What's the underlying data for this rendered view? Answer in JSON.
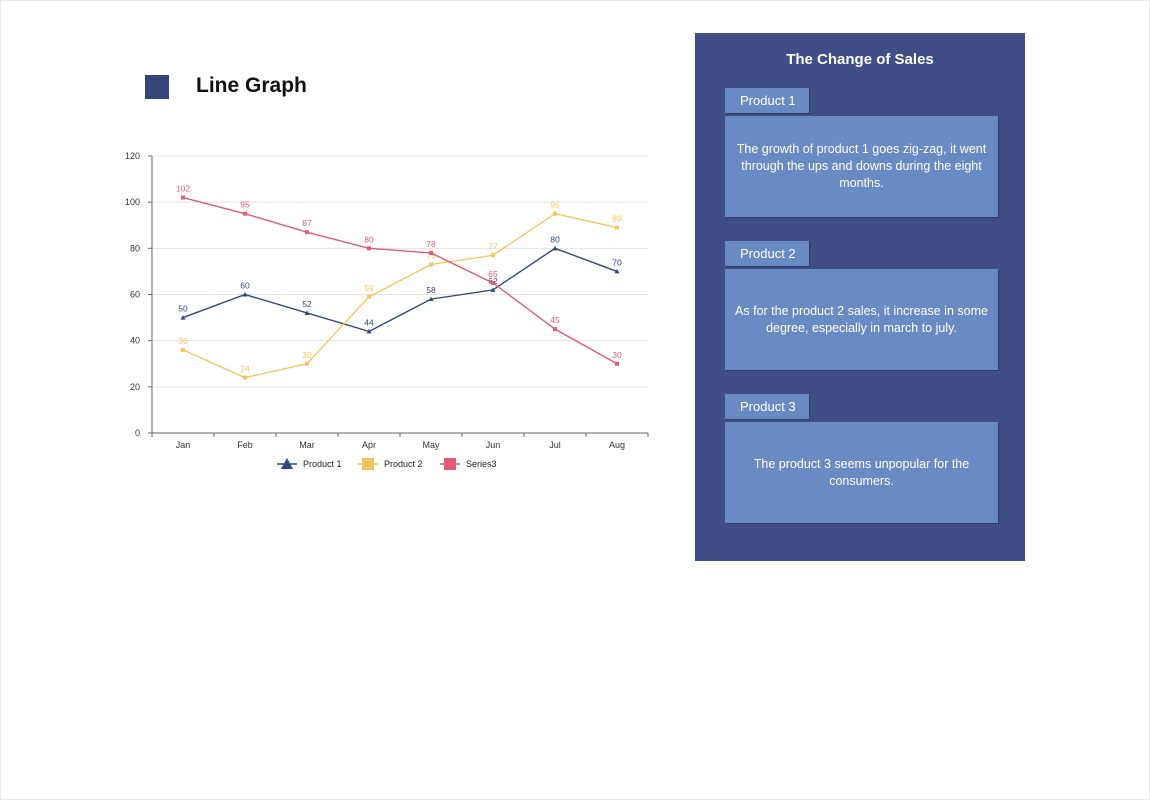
{
  "page": {
    "title": "Line Graph"
  },
  "chart_data": {
    "type": "line",
    "categories": [
      "Jan",
      "Feb",
      "Mar",
      "Apr",
      "May",
      "Jun",
      "Jul",
      "Aug"
    ],
    "series": [
      {
        "name": "Product 1",
        "values": [
          50,
          60,
          52,
          44,
          58,
          62,
          80,
          70
        ],
        "color": "#34467a",
        "marker": "triangle"
      },
      {
        "name": "Product 2",
        "values": [
          36,
          24,
          30,
          59,
          73,
          77,
          95,
          89
        ],
        "color": "#f5c65f",
        "marker": "square"
      },
      {
        "name": "Series3",
        "values": [
          102,
          95,
          87,
          80,
          78,
          65,
          45,
          30
        ],
        "color": "#e05c76",
        "marker": "square"
      }
    ],
    "data_labels": [
      [
        "50",
        "60",
        "52",
        "44",
        "58",
        "62",
        "80",
        "70"
      ],
      [
        "36",
        "24",
        "30",
        "59",
        "73",
        "77",
        "95",
        "89"
      ],
      [
        "102",
        "95",
        "87",
        "80",
        "78",
        "65",
        "45",
        "30"
      ]
    ],
    "y_ticks": [
      "0",
      "20",
      "40",
      "60",
      "80",
      "100",
      "120"
    ],
    "ylim": [
      0,
      120
    ],
    "grid": true,
    "legend": "bottom"
  },
  "panel": {
    "title": "The Change of Sales",
    "products": [
      {
        "label": "Product 1",
        "text": "The growth of product 1 goes zig-zag, it went through the ups and downs during the eight months."
      },
      {
        "label": "Product 2",
        "text": "As for the product 2 sales, it increase in some degree, especially in march to july."
      },
      {
        "label": "Product 3",
        "text": "The product 3 seems unpopular for the consumers."
      }
    ]
  },
  "colors": {
    "panel_bg": "#3f4e86",
    "card_bg": "#6a8ac4",
    "title_square": "#34467a"
  }
}
